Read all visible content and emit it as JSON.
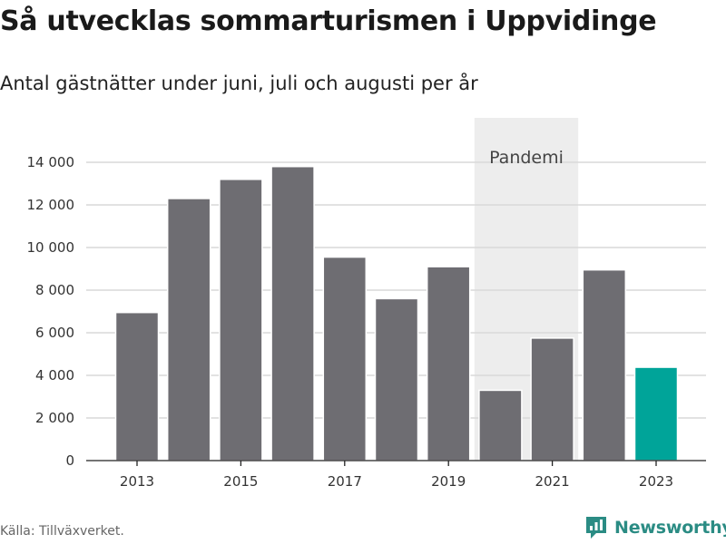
{
  "title": "Så utvecklas sommarturismen i Uppvidinge",
  "subtitle": "Antal gästnätter under juni, juli och augusti per år",
  "source": "Källa: Tillväxverket.",
  "brand": {
    "name": "Newsworthy",
    "icon": "newsworthy-logo-icon",
    "color": "#2b8c84"
  },
  "colors": {
    "bar": "#6e6d72",
    "highlight": "#00a499",
    "band": "#ededed",
    "grid": "#d9d9d9"
  },
  "chart_data": {
    "type": "bar",
    "categories": [
      "2013",
      "2014",
      "2015",
      "2016",
      "2017",
      "2018",
      "2019",
      "2020",
      "2021",
      "2022",
      "2023"
    ],
    "values": [
      6950,
      12300,
      13200,
      13800,
      9550,
      7600,
      9100,
      3300,
      5750,
      8950,
      4380
    ],
    "highlight": [
      "2023"
    ],
    "x_tick_labels": [
      "2013",
      "2015",
      "2017",
      "2019",
      "2021",
      "2023"
    ],
    "y_ticks": [
      0,
      2000,
      4000,
      6000,
      8000,
      10000,
      12000,
      14000
    ],
    "y_tick_labels": [
      "0",
      "2 000",
      "4 000",
      "6 000",
      "8 000",
      "10 000",
      "12 000",
      "14 000"
    ],
    "ylim": [
      0,
      16000
    ],
    "grid": true,
    "annotation": {
      "label": "Pandemi",
      "from": "2020",
      "to": "2021"
    }
  }
}
